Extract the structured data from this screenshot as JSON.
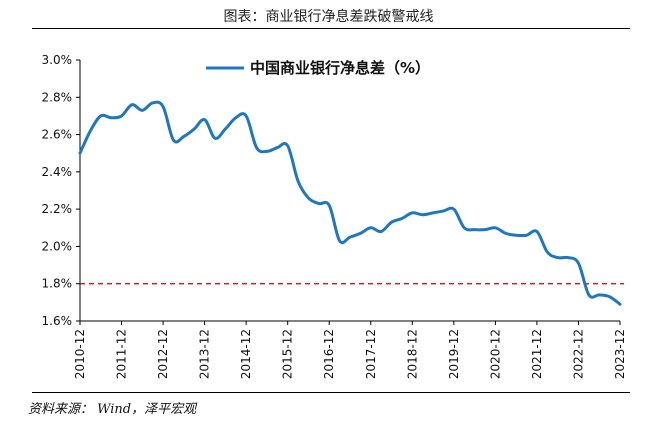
{
  "title": "图表：商业银行净息差跌破警戒线",
  "source": "资料来源： Wind，泽平宏观",
  "colors": {
    "series": "#1F77C0",
    "threshold": "#C00000",
    "axis": "#000000",
    "text": "#111111"
  },
  "chart_data": {
    "type": "line",
    "title": "图表：商业银行净息差跌破警戒线",
    "xlabel": "",
    "ylabel": "",
    "legend_position": "top-center",
    "grid": false,
    "ylim": [
      1.6,
      3.0
    ],
    "y_ticks": [
      "1.6%",
      "1.8%",
      "2.0%",
      "2.2%",
      "2.4%",
      "2.6%",
      "2.8%",
      "3.0%"
    ],
    "y_tick_values": [
      1.6,
      1.8,
      2.0,
      2.2,
      2.4,
      2.6,
      2.8,
      3.0
    ],
    "categories": [
      "2010-12",
      "2011-03",
      "2011-06",
      "2011-09",
      "2011-12",
      "2012-03",
      "2012-06",
      "2012-09",
      "2012-12",
      "2013-03",
      "2013-06",
      "2013-09",
      "2013-12",
      "2014-03",
      "2014-06",
      "2014-09",
      "2014-12",
      "2015-03",
      "2015-06",
      "2015-09",
      "2015-12",
      "2016-03",
      "2016-06",
      "2016-09",
      "2016-12",
      "2017-03",
      "2017-06",
      "2017-09",
      "2017-12",
      "2018-03",
      "2018-06",
      "2018-09",
      "2018-12",
      "2019-03",
      "2019-06",
      "2019-09",
      "2019-12",
      "2020-03",
      "2020-06",
      "2020-09",
      "2020-12",
      "2021-03",
      "2021-06",
      "2021-09",
      "2021-12",
      "2022-03",
      "2022-06",
      "2022-09",
      "2022-12",
      "2023-03",
      "2023-06",
      "2023-09",
      "2023-12"
    ],
    "x_tick_labels": [
      "2010-12",
      "2011-12",
      "2012-12",
      "2013-12",
      "2014-12",
      "2015-12",
      "2016-12",
      "2017-12",
      "2018-12",
      "2019-12",
      "2020-12",
      "2021-12",
      "2022-12",
      "2023-12"
    ],
    "series": [
      {
        "name": "中国商业银行净息差（%）",
        "values": [
          2.5,
          2.62,
          2.7,
          2.69,
          2.7,
          2.76,
          2.73,
          2.77,
          2.75,
          2.57,
          2.59,
          2.63,
          2.68,
          2.58,
          2.63,
          2.69,
          2.7,
          2.53,
          2.51,
          2.53,
          2.54,
          2.35,
          2.26,
          2.23,
          2.22,
          2.03,
          2.05,
          2.07,
          2.1,
          2.08,
          2.13,
          2.15,
          2.18,
          2.17,
          2.18,
          2.19,
          2.2,
          2.1,
          2.09,
          2.09,
          2.1,
          2.07,
          2.06,
          2.06,
          2.08,
          1.97,
          1.94,
          1.94,
          1.91,
          1.74,
          1.74,
          1.73,
          1.69
        ]
      }
    ],
    "threshold": {
      "value": 1.8,
      "style": "dashed"
    }
  }
}
